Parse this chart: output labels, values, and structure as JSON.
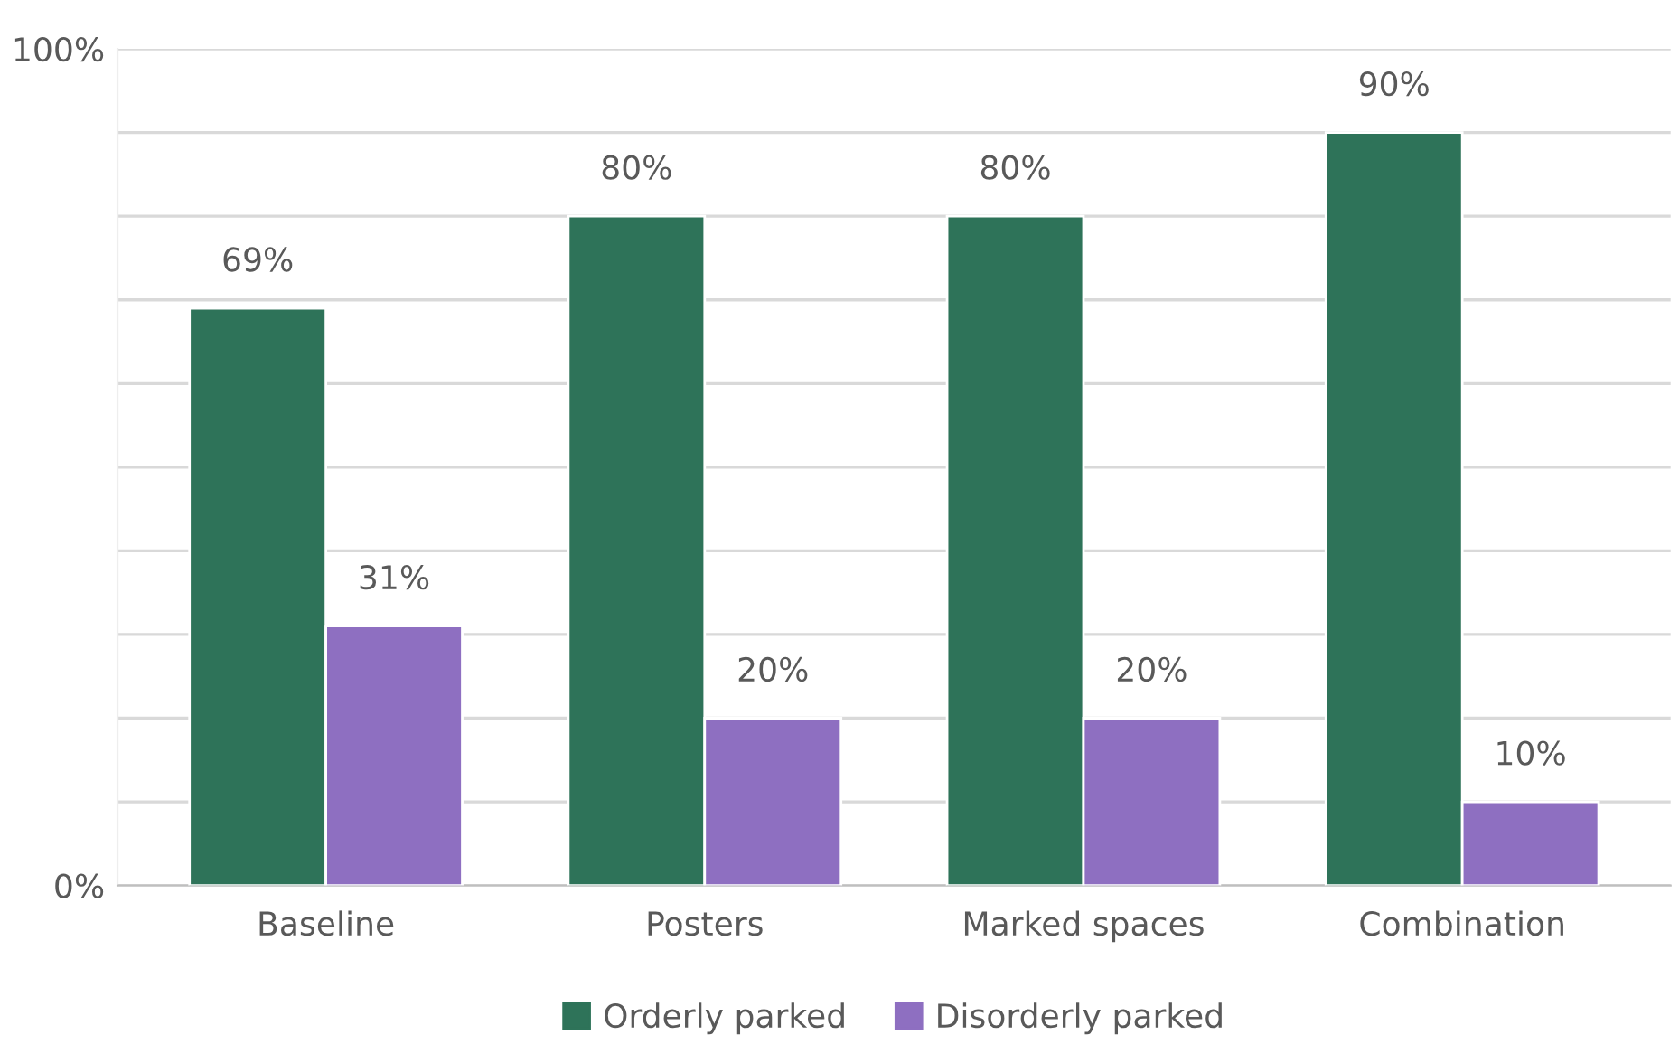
{
  "chart_data": {
    "type": "bar",
    "categories": [
      "Baseline",
      "Posters",
      "Marked spaces",
      "Combination"
    ],
    "series": [
      {
        "name": "Orderly parked",
        "color": "#2e7359",
        "values": [
          69,
          80,
          80,
          90
        ],
        "value_labels": [
          "69%",
          "80%",
          "80%",
          "90%"
        ]
      },
      {
        "name": "Disorderly parked",
        "color": "#8e6fc1",
        "values": [
          31,
          20,
          20,
          10
        ],
        "value_labels": [
          "31%",
          "20%",
          "20%",
          "10%"
        ]
      }
    ],
    "ylim": [
      0,
      100
    ],
    "yticks": [
      {
        "value": 0,
        "label": "0%"
      },
      {
        "value": 10,
        "label": null
      },
      {
        "value": 20,
        "label": null
      },
      {
        "value": 30,
        "label": null
      },
      {
        "value": 40,
        "label": null
      },
      {
        "value": 50,
        "label": null
      },
      {
        "value": 60,
        "label": null
      },
      {
        "value": 70,
        "label": null
      },
      {
        "value": 80,
        "label": null
      },
      {
        "value": 90,
        "label": null
      },
      {
        "value": 100,
        "label": "100%"
      }
    ],
    "grid": "y",
    "legend": "bottom"
  }
}
